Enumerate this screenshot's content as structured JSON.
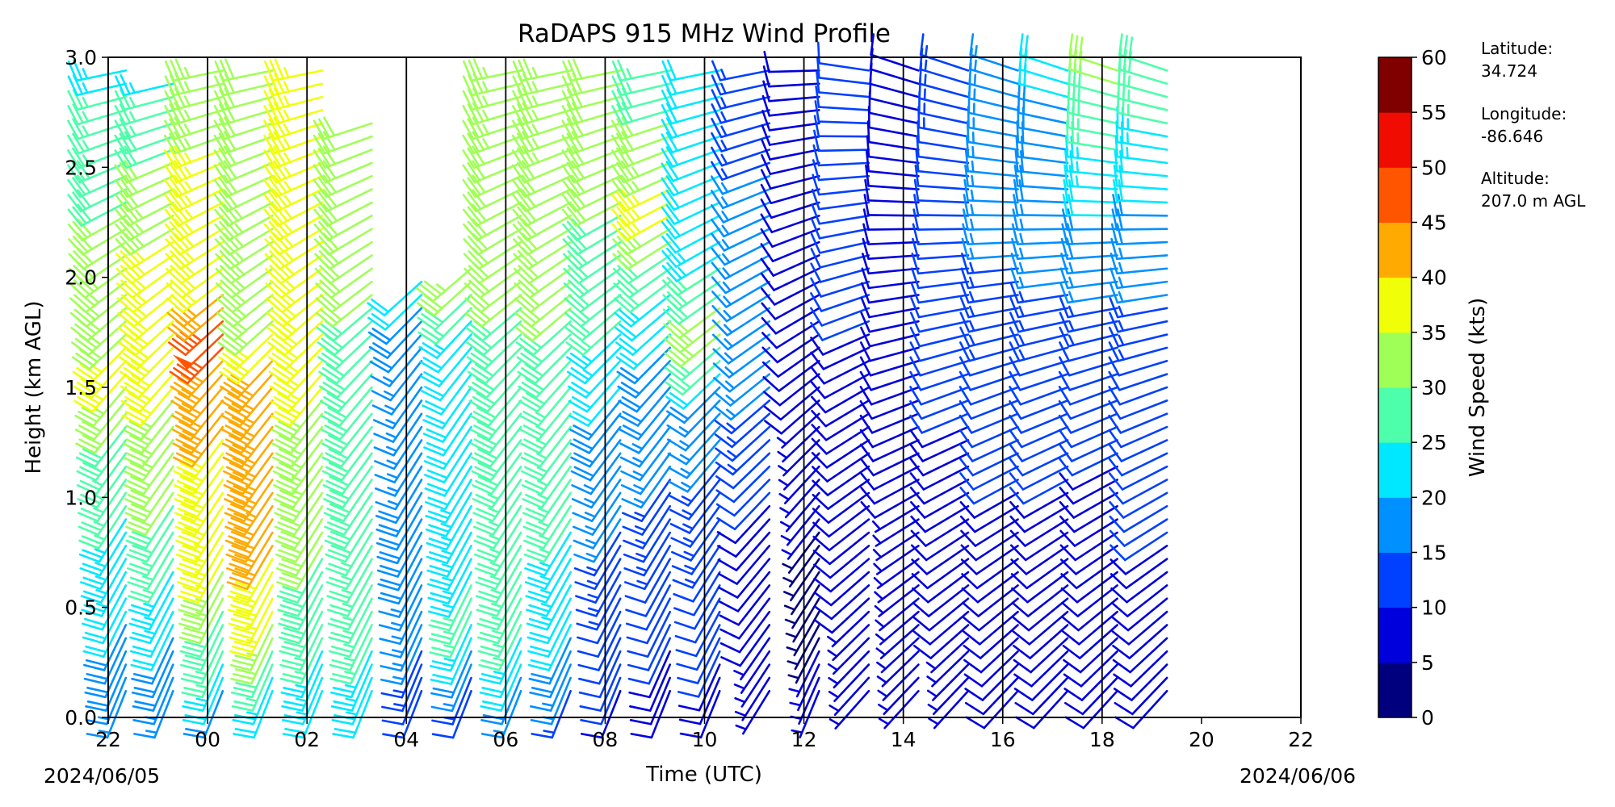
{
  "chart_data": {
    "type": "wind_barb_profile",
    "title": "RaDAPS 915 MHz Wind Profile",
    "xlabel": "Time (UTC)",
    "ylabel": "Height (km AGL)",
    "x_ticks": [
      "22",
      "00",
      "02",
      "04",
      "06",
      "08",
      "10",
      "12",
      "14",
      "16",
      "18",
      "20",
      "22"
    ],
    "y_ticks": [
      "0.0",
      "0.5",
      "1.0",
      "1.5",
      "2.0",
      "2.5",
      "3.0"
    ],
    "ylim": [
      0,
      3.0
    ],
    "x_range_hours": [
      0,
      24
    ],
    "start_date": "2024/06/05",
    "end_date": "2024/06/06",
    "vertical_divider_hours": [
      2,
      4,
      6,
      8,
      10,
      12,
      14,
      16,
      18,
      20
    ],
    "colorbar": {
      "label": "Wind Speed (kts)",
      "ticks": [
        "0",
        "5",
        "10",
        "15",
        "20",
        "25",
        "30",
        "35",
        "40",
        "45",
        "50",
        "55",
        "60"
      ],
      "colors": [
        "#00007f",
        "#0000dd",
        "#0040ff",
        "#0090ff",
        "#00e8ff",
        "#4dffaa",
        "#a0ff57",
        "#f0ff07",
        "#ffaa00",
        "#ff5500",
        "#f00c00",
        "#800000"
      ]
    },
    "site_info": {
      "latitude_label": "Latitude:",
      "latitude": "34.724",
      "longitude_label": "Longitude:",
      "longitude": "-86.646",
      "altitude_label": "Altitude:",
      "altitude": "207.0 m AGL"
    },
    "profiles": [
      {
        "hour": 0.55,
        "top_km": 2.95,
        "speed_kts": [
          [
            0,
            15
          ],
          [
            0.6,
            22
          ],
          [
            1.2,
            27
          ],
          [
            1.6,
            36
          ],
          [
            2.0,
            33
          ],
          [
            2.5,
            28
          ],
          [
            3.0,
            24
          ]
        ],
        "dir_deg": [
          [
            0,
            200
          ],
          [
            1.5,
            220
          ],
          [
            3.0,
            260
          ]
        ]
      },
      {
        "hour": 1.5,
        "top_km": 2.9,
        "speed_kts": [
          [
            0,
            14
          ],
          [
            0.5,
            22
          ],
          [
            1.0,
            30
          ],
          [
            1.5,
            35
          ],
          [
            1.7,
            40
          ],
          [
            2.2,
            35
          ],
          [
            3.0,
            23
          ]
        ],
        "dir_deg": [
          [
            0,
            200
          ],
          [
            1.5,
            220
          ],
          [
            3.0,
            260
          ]
        ]
      },
      {
        "hour": 2.5,
        "top_km": 2.95,
        "speed_kts": [
          [
            0,
            15
          ],
          [
            0.3,
            25
          ],
          [
            0.7,
            36
          ],
          [
            1.6,
            42
          ],
          [
            1.75,
            48
          ],
          [
            2.0,
            38
          ],
          [
            3.0,
            33
          ]
        ],
        "dir_deg": [
          [
            0,
            200
          ],
          [
            1.5,
            220
          ],
          [
            3.0,
            260
          ]
        ]
      },
      {
        "hour": 3.5,
        "top_km": 2.95,
        "speed_kts": [
          [
            0,
            18
          ],
          [
            0.5,
            36
          ],
          [
            0.8,
            41
          ],
          [
            1.2,
            44
          ],
          [
            1.5,
            45
          ],
          [
            1.8,
            35
          ],
          [
            3.0,
            30
          ]
        ],
        "dir_deg": [
          [
            0,
            200
          ],
          [
            1.5,
            220
          ],
          [
            3.0,
            260
          ]
        ]
      },
      {
        "hour": 4.5,
        "top_km": 2.95,
        "speed_kts": [
          [
            0,
            20
          ],
          [
            0.5,
            28
          ],
          [
            1.0,
            32
          ],
          [
            1.5,
            35
          ],
          [
            1.8,
            38
          ],
          [
            2.2,
            36
          ],
          [
            3.0,
            37
          ]
        ],
        "dir_deg": [
          [
            0,
            200
          ],
          [
            1.5,
            220
          ],
          [
            3.0,
            260
          ]
        ]
      },
      {
        "hour": 5.5,
        "top_km": 2.75,
        "speed_kts": [
          [
            0,
            20
          ],
          [
            0.5,
            27
          ],
          [
            1.2,
            28
          ],
          [
            1.6,
            29
          ],
          [
            1.9,
            30
          ],
          [
            2.7,
            32
          ]
        ],
        "dir_deg": [
          [
            0,
            200
          ],
          [
            1.5,
            220
          ],
          [
            3.0,
            260
          ]
        ]
      },
      {
        "hour": 6.5,
        "top_km": 2.0,
        "speed_kts": [
          [
            0,
            8
          ],
          [
            0.4,
            16
          ],
          [
            0.8,
            18
          ],
          [
            1.4,
            17
          ],
          [
            1.7,
            17
          ],
          [
            2.0,
            22
          ]
        ],
        "dir_deg": [
          [
            0,
            200
          ],
          [
            1.5,
            215
          ],
          [
            3.0,
            255
          ]
        ]
      },
      {
        "hour": 7.5,
        "top_km": 2.05,
        "speed_kts": [
          [
            0,
            8
          ],
          [
            0.5,
            26
          ],
          [
            0.8,
            24
          ],
          [
            1.4,
            21
          ],
          [
            1.7,
            20
          ],
          [
            2.05,
            33
          ]
        ],
        "dir_deg": [
          [
            0,
            200
          ],
          [
            1.5,
            215
          ],
          [
            3.0,
            255
          ]
        ]
      },
      {
        "hour": 8.5,
        "top_km": 2.95,
        "speed_kts": [
          [
            0,
            14
          ],
          [
            0.4,
            25
          ],
          [
            1.0,
            27
          ],
          [
            1.6,
            29
          ],
          [
            2.2,
            31
          ],
          [
            3.0,
            34
          ]
        ],
        "dir_deg": [
          [
            0,
            200
          ],
          [
            1.5,
            220
          ],
          [
            3.0,
            260
          ]
        ]
      },
      {
        "hour": 9.5,
        "top_km": 2.95,
        "speed_kts": [
          [
            0,
            12
          ],
          [
            0.5,
            22
          ],
          [
            1.0,
            26
          ],
          [
            1.5,
            27
          ],
          [
            2.1,
            32
          ],
          [
            3.0,
            33
          ]
        ],
        "dir_deg": [
          [
            0,
            200
          ],
          [
            1.5,
            220
          ],
          [
            3.0,
            260
          ]
        ]
      },
      {
        "hour": 10.5,
        "top_km": 2.95,
        "speed_kts": [
          [
            0,
            9
          ],
          [
            0.5,
            12
          ],
          [
            0.9,
            15
          ],
          [
            1.4,
            19
          ],
          [
            1.8,
            25
          ],
          [
            2.3,
            30
          ],
          [
            3.0,
            31
          ]
        ],
        "dir_deg": [
          [
            0,
            200
          ],
          [
            1.5,
            220
          ],
          [
            3.0,
            260
          ]
        ]
      },
      {
        "hour": 11.5,
        "top_km": 2.95,
        "speed_kts": [
          [
            0,
            8
          ],
          [
            0.5,
            11
          ],
          [
            1.0,
            14
          ],
          [
            1.5,
            18
          ],
          [
            1.9,
            22
          ],
          [
            2.3,
            37
          ],
          [
            3.0,
            25
          ]
        ],
        "dir_deg": [
          [
            0,
            200
          ],
          [
            1.5,
            220
          ],
          [
            3.0,
            260
          ]
        ]
      },
      {
        "hour": 12.5,
        "top_km": 2.95,
        "speed_kts": [
          [
            0,
            8
          ],
          [
            0.5,
            12
          ],
          [
            1.0,
            13
          ],
          [
            1.5,
            18
          ],
          [
            1.75,
            34
          ],
          [
            2.2,
            22
          ],
          [
            3.0,
            20
          ]
        ],
        "dir_deg": [
          [
            0,
            200
          ],
          [
            1.5,
            225
          ],
          [
            3.0,
            260
          ]
        ]
      },
      {
        "hour": 13.5,
        "top_km": 2.95,
        "speed_kts": [
          [
            0,
            6
          ],
          [
            0.5,
            8
          ],
          [
            1.0,
            10
          ],
          [
            1.5,
            15
          ],
          [
            2.0,
            16
          ],
          [
            3.0,
            14
          ]
        ],
        "dir_deg": [
          [
            0,
            210
          ],
          [
            1.5,
            230
          ],
          [
            3.0,
            260
          ]
        ]
      },
      {
        "hour": 14.5,
        "top_km": 2.95,
        "speed_kts": [
          [
            0,
            6
          ],
          [
            0.7,
            4
          ],
          [
            1.5,
            8
          ],
          [
            2.0,
            9
          ],
          [
            3.0,
            10
          ]
        ],
        "dir_deg": [
          [
            0,
            200
          ],
          [
            1.5,
            230
          ],
          [
            3.0,
            270
          ]
        ]
      },
      {
        "hour": 15.5,
        "top_km": 2.95,
        "speed_kts": [
          [
            0,
            7
          ],
          [
            1.0,
            8
          ],
          [
            1.5,
            9
          ],
          [
            2.0,
            11
          ],
          [
            3.0,
            11
          ]
        ],
        "dir_deg": [
          [
            0,
            220
          ],
          [
            1.5,
            240
          ],
          [
            3.0,
            280
          ]
        ]
      },
      {
        "hour": 16.5,
        "top_km": 2.95,
        "speed_kts": [
          [
            0,
            6
          ],
          [
            0.8,
            7
          ],
          [
            1.6,
            9
          ],
          [
            2.2,
            10
          ],
          [
            3.0,
            9
          ]
        ],
        "dir_deg": [
          [
            0,
            220
          ],
          [
            1.5,
            250
          ],
          [
            3.0,
            290
          ]
        ]
      },
      {
        "hour": 17.5,
        "top_km": 2.95,
        "speed_kts": [
          [
            0,
            7
          ],
          [
            0.8,
            8
          ],
          [
            1.6,
            11
          ],
          [
            2.2,
            12
          ],
          [
            3.0,
            13
          ]
        ],
        "dir_deg": [
          [
            0,
            220
          ],
          [
            1.5,
            250
          ],
          [
            3.0,
            290
          ]
        ]
      },
      {
        "hour": 18.5,
        "top_km": 2.95,
        "speed_kts": [
          [
            0,
            8
          ],
          [
            0.8,
            9
          ],
          [
            1.6,
            12
          ],
          [
            2.2,
            16
          ],
          [
            3.0,
            17
          ]
        ],
        "dir_deg": [
          [
            0,
            220
          ],
          [
            1.5,
            250
          ],
          [
            3.0,
            290
          ]
        ]
      },
      {
        "hour": 19.5,
        "top_km": 2.95,
        "speed_kts": [
          [
            0,
            8
          ],
          [
            0.8,
            9
          ],
          [
            1.6,
            12
          ],
          [
            2.2,
            17
          ],
          [
            3.0,
            21
          ]
        ],
        "dir_deg": [
          [
            0,
            220
          ],
          [
            1.5,
            250
          ],
          [
            3.0,
            290
          ]
        ]
      },
      {
        "hour": 20.5,
        "top_km": 2.95,
        "speed_kts": [
          [
            0,
            8
          ],
          [
            0.8,
            9
          ],
          [
            1.6,
            11
          ],
          [
            2.2,
            19
          ],
          [
            3.0,
            33
          ]
        ],
        "dir_deg": [
          [
            0,
            220
          ],
          [
            1.5,
            250
          ],
          [
            3.0,
            290
          ]
        ]
      },
      {
        "hour": 21.5,
        "top_km": 2.95,
        "speed_kts": [
          [
            0,
            9
          ],
          [
            0.8,
            10
          ],
          [
            1.6,
            12
          ],
          [
            2.2,
            18
          ],
          [
            3.0,
            30
          ]
        ],
        "dir_deg": [
          [
            0,
            220
          ],
          [
            1.5,
            250
          ],
          [
            3.0,
            290
          ]
        ]
      }
    ]
  }
}
